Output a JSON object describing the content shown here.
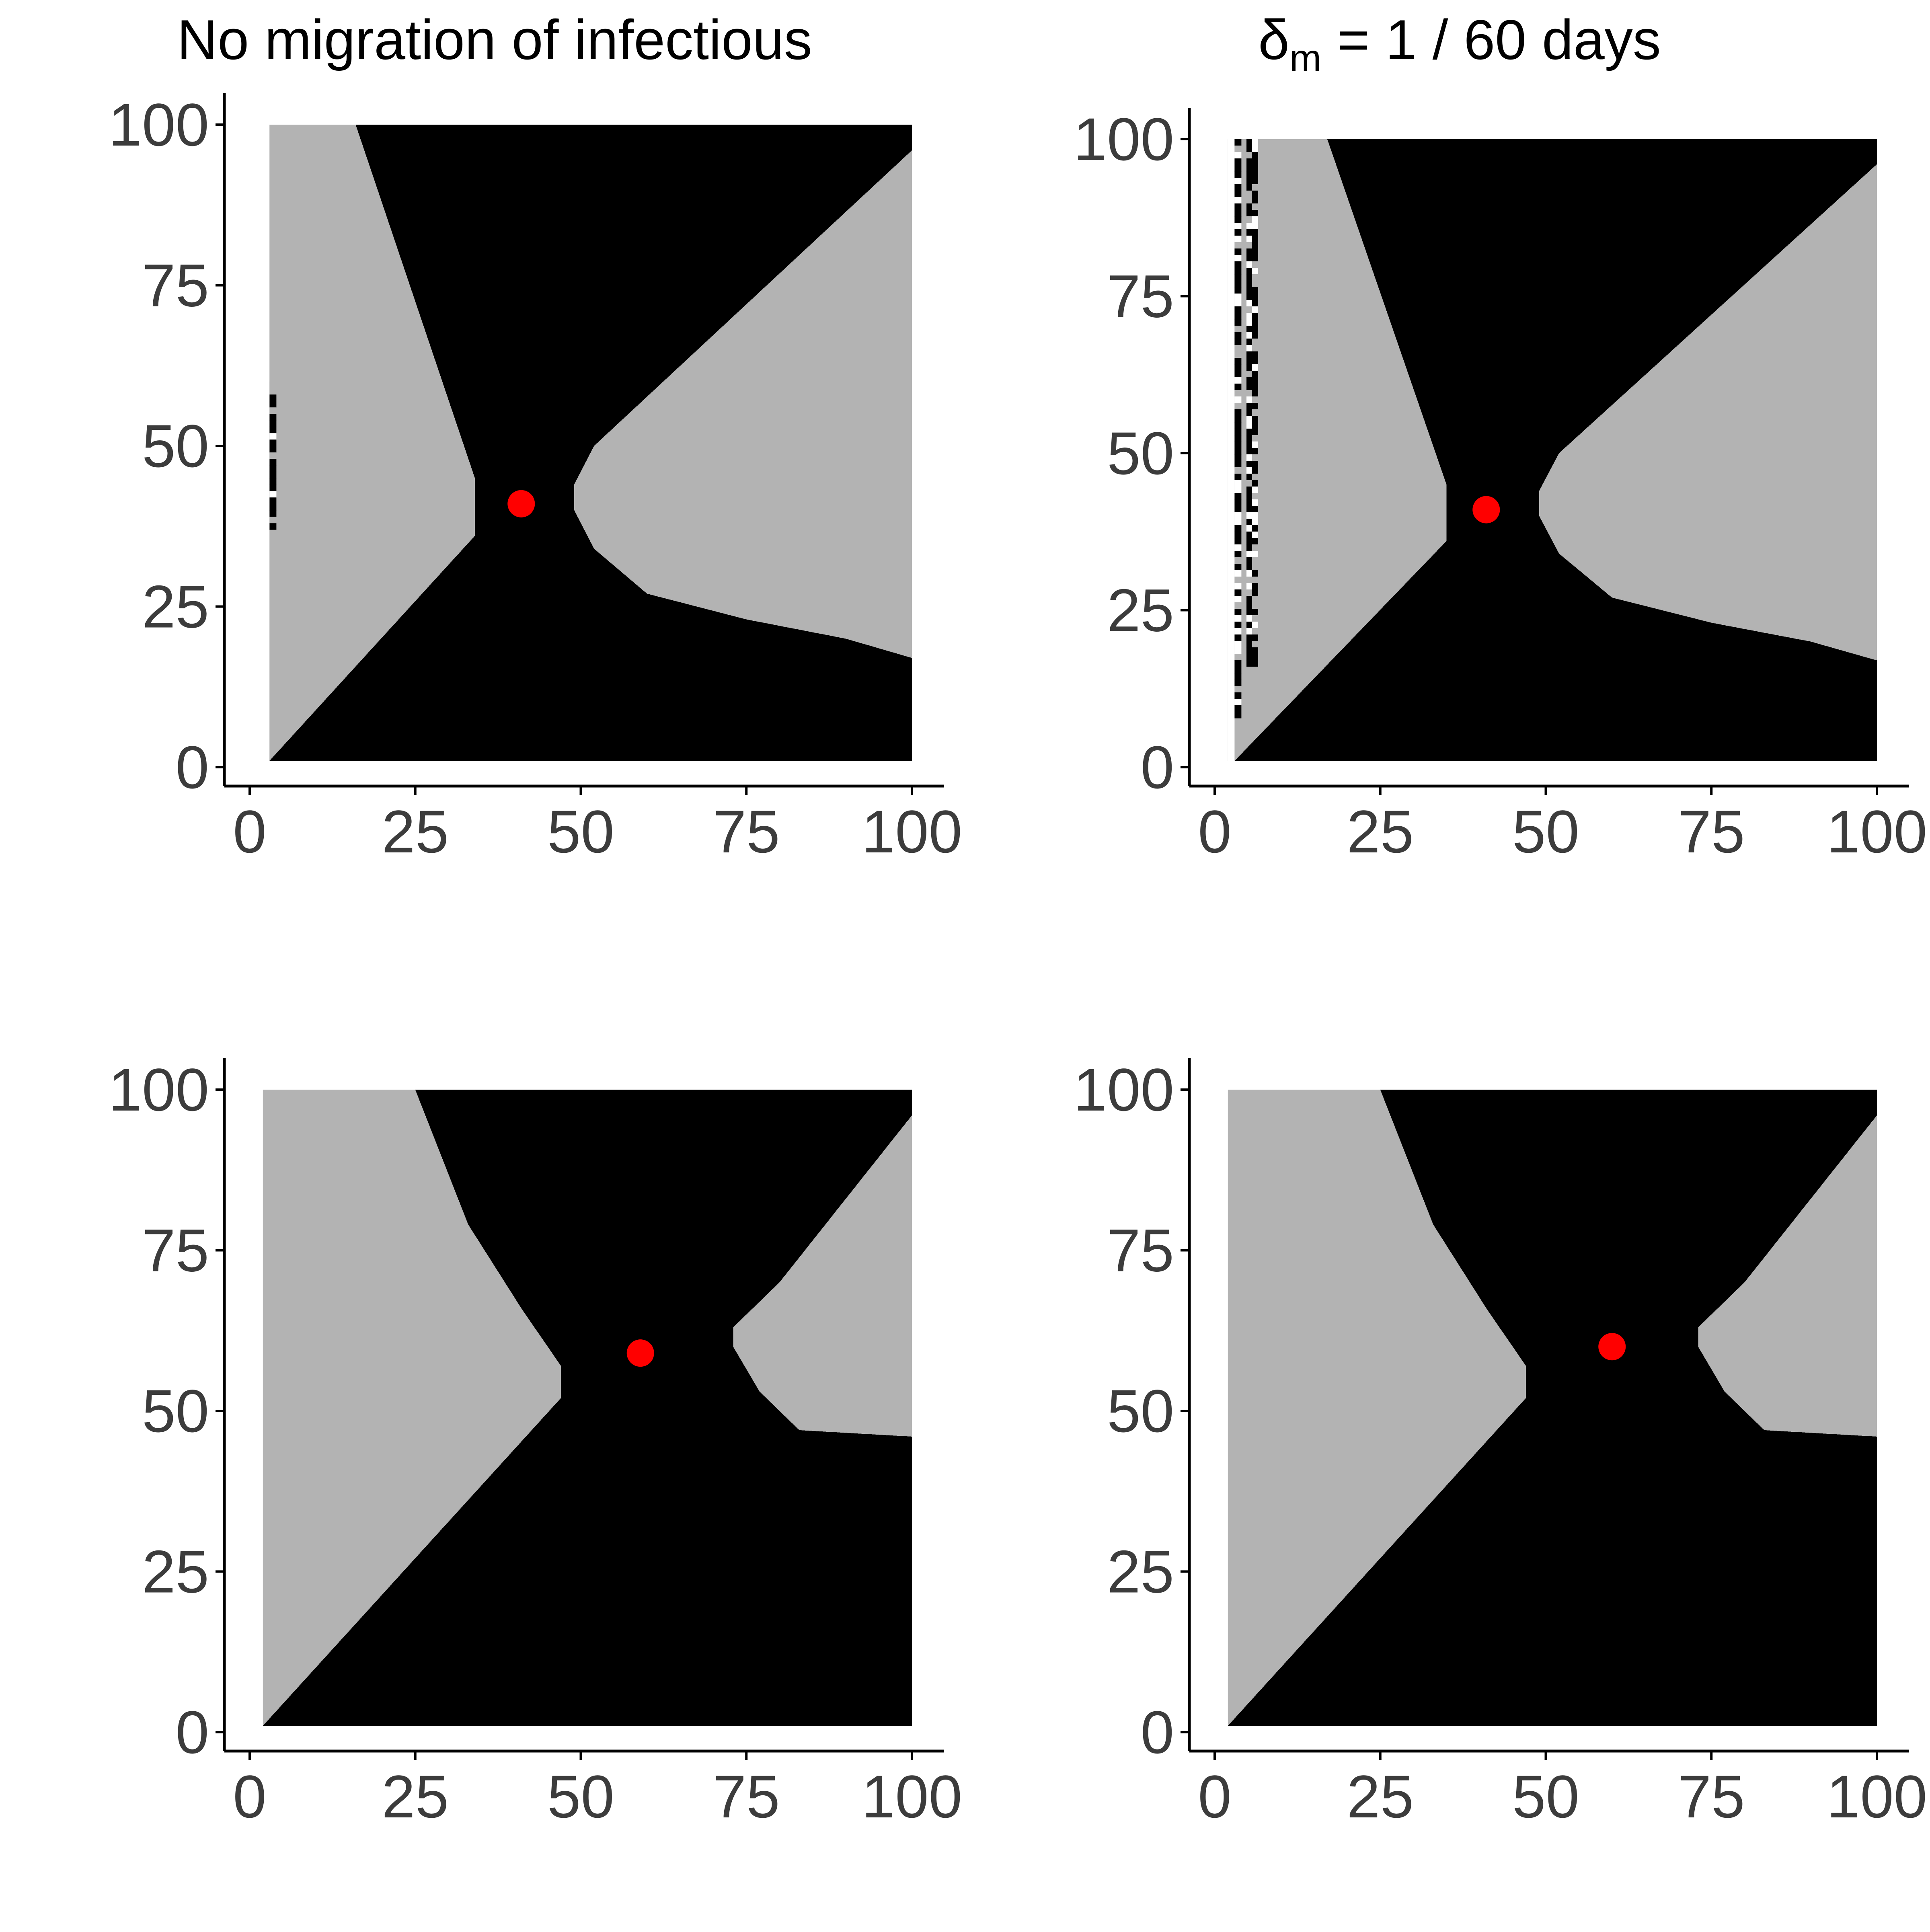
{
  "titles": {
    "left": "No migration of infectious",
    "right": {
      "symbol": "δ",
      "subscript": "m",
      "rest": " = 1 / 60 days"
    }
  },
  "colors": {
    "background": "#ffffff",
    "region_gray": "#b3b3b3",
    "region_black": "#000000",
    "point": "#ff0000",
    "axis": "#000000",
    "tick_label": "#3c3c3c"
  },
  "chart_data": [
    {
      "type": "heatmap",
      "position": "top-left",
      "title": "No migration of infectious",
      "xlim": [
        0,
        100
      ],
      "ylim": [
        0,
        100
      ],
      "xticks": [
        0,
        25,
        50,
        75,
        100
      ],
      "yticks": [
        0,
        25,
        50,
        75,
        100
      ],
      "grid": false,
      "grid_range": [
        3,
        100
      ],
      "left_boundary": [
        [
          3,
          1
        ],
        [
          34,
          36
        ],
        [
          34,
          45
        ],
        [
          16,
          100
        ]
      ],
      "right_boundary": [
        [
          49,
          40
        ],
        [
          52,
          34
        ],
        [
          60,
          27
        ],
        [
          75,
          23
        ],
        [
          90,
          20
        ],
        [
          100,
          17
        ],
        [
          100,
          96
        ],
        [
          52,
          50
        ],
        [
          49,
          44
        ]
      ],
      "noise_strips": [
        {
          "x": [
            3,
            4
          ],
          "y": [
            37,
            60
          ]
        }
      ],
      "point": {
        "x": 41,
        "y": 41
      }
    },
    {
      "type": "heatmap",
      "position": "top-right",
      "title": "δm = 1 / 60 days",
      "xlim": [
        0,
        100
      ],
      "ylim": [
        0,
        100
      ],
      "xticks": [
        0,
        25,
        50,
        75,
        100
      ],
      "yticks": [
        0,
        25,
        50,
        75,
        100
      ],
      "grid": false,
      "grid_range": [
        2,
        100
      ],
      "left_boundary": [
        [
          3,
          1
        ],
        [
          35,
          36
        ],
        [
          35,
          45
        ],
        [
          17,
          100
        ]
      ],
      "right_boundary": [
        [
          49,
          40
        ],
        [
          52,
          34
        ],
        [
          60,
          27
        ],
        [
          75,
          23
        ],
        [
          90,
          20
        ],
        [
          100,
          17
        ],
        [
          100,
          96
        ],
        [
          52,
          50
        ],
        [
          49,
          44
        ]
      ],
      "white_strips": [
        {
          "x": [
            2,
            3
          ],
          "y": [
            1,
            100
          ]
        },
        {
          "x": [
            5,
            5.5
          ],
          "y": [
            15,
            100
          ]
        }
      ],
      "noise_strips": [
        {
          "x": [
            3,
            4
          ],
          "y": [
            8,
            100
          ]
        },
        {
          "x": [
            4.8,
            6.5
          ],
          "y": [
            15,
            100
          ]
        }
      ],
      "point": {
        "x": 41,
        "y": 41
      }
    },
    {
      "type": "heatmap",
      "position": "bottom-left",
      "xlim": [
        0,
        100
      ],
      "ylim": [
        0,
        100
      ],
      "xticks": [
        0,
        25,
        50,
        75,
        100
      ],
      "yticks": [
        0,
        25,
        50,
        75,
        100
      ],
      "grid": false,
      "grid_range": [
        2,
        100
      ],
      "left_boundary": [
        [
          2,
          1
        ],
        [
          47,
          52
        ],
        [
          47,
          57
        ],
        [
          41,
          66
        ],
        [
          33,
          79
        ],
        [
          25,
          100
        ]
      ],
      "right_boundary": [
        [
          100,
          46
        ],
        [
          83,
          47
        ],
        [
          77,
          53
        ],
        [
          73,
          60
        ],
        [
          73,
          63
        ],
        [
          80,
          70
        ],
        [
          100,
          96
        ]
      ],
      "point": {
        "x": 59,
        "y": 59
      }
    },
    {
      "type": "heatmap",
      "position": "bottom-right",
      "xlim": [
        0,
        100
      ],
      "ylim": [
        0,
        100
      ],
      "xticks": [
        0,
        25,
        50,
        75,
        100
      ],
      "yticks": [
        0,
        25,
        50,
        75,
        100
      ],
      "grid": false,
      "grid_range": [
        2,
        100
      ],
      "left_boundary": [
        [
          2,
          1
        ],
        [
          47,
          52
        ],
        [
          47,
          57
        ],
        [
          41,
          66
        ],
        [
          33,
          79
        ],
        [
          25,
          100
        ]
      ],
      "right_boundary": [
        [
          100,
          46
        ],
        [
          83,
          47
        ],
        [
          77,
          53
        ],
        [
          73,
          60
        ],
        [
          73,
          63
        ],
        [
          80,
          70
        ],
        [
          100,
          96
        ]
      ],
      "point": {
        "x": 60,
        "y": 60
      }
    }
  ]
}
